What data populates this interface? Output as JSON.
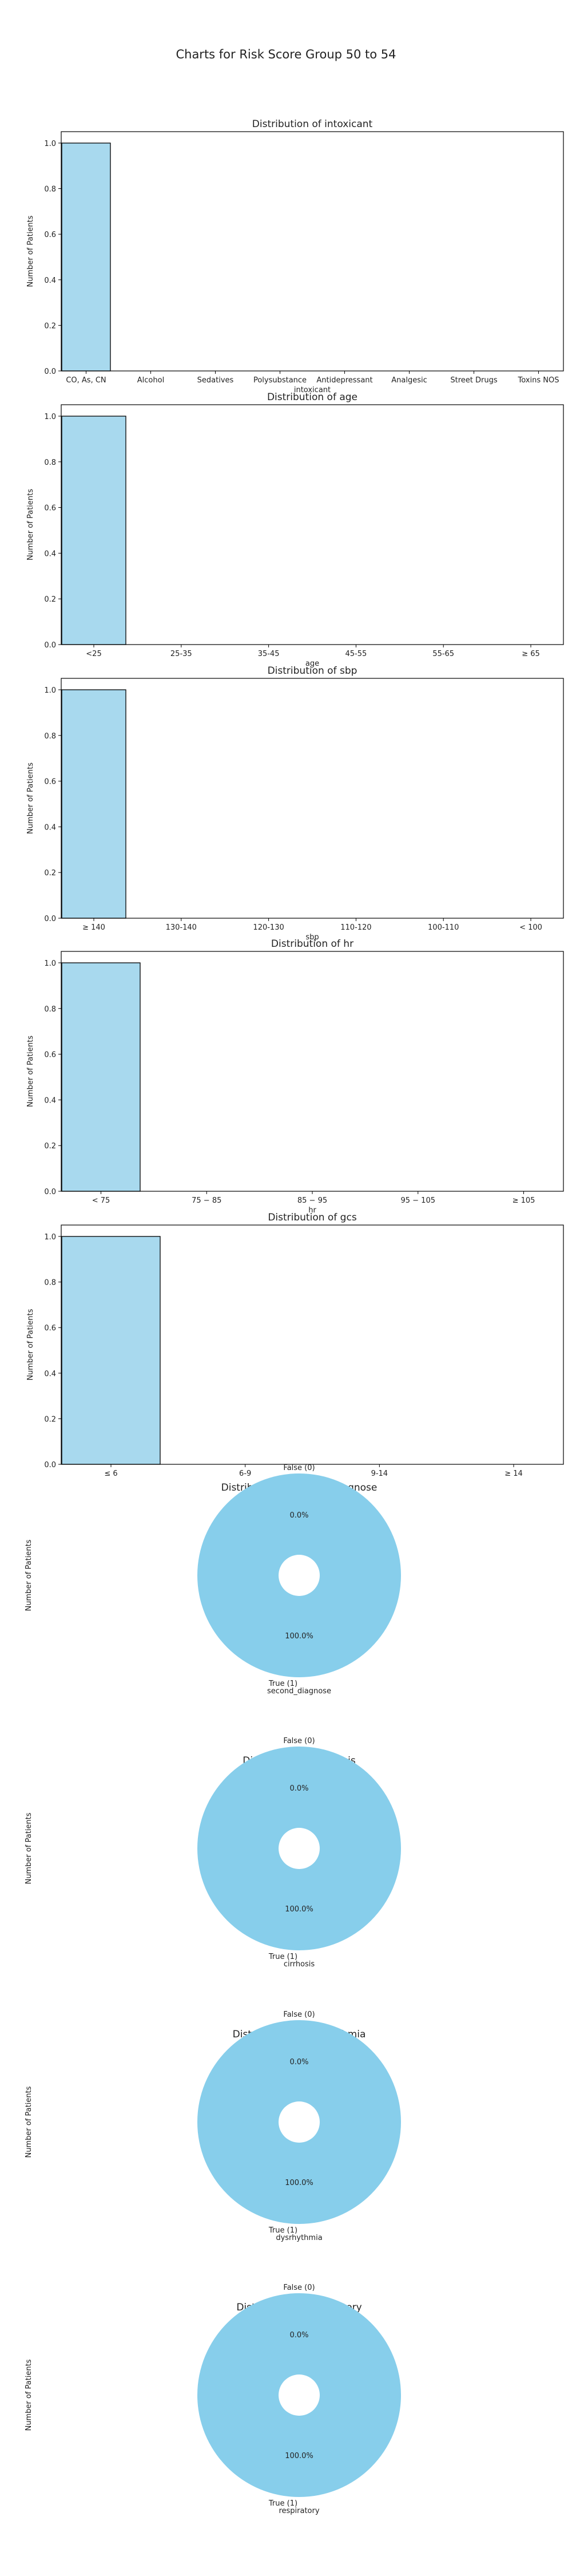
{
  "figure": {
    "title": "Charts for Risk Score Group 50 to 54"
  },
  "colors": {
    "bar_fill": "#a8d9ee",
    "bar_edge": "#000000",
    "pie_fill": "#87ceeb",
    "axis": "#000000"
  },
  "chart_data": [
    {
      "type": "bar",
      "title": "Distribution of intoxicant",
      "xlabel": "intoxicant",
      "ylabel": "Number of Patients",
      "ylim": [
        0,
        1.05
      ],
      "yticks": [
        "0.0",
        "0.2",
        "0.4",
        "0.6",
        "0.8",
        "1.0"
      ],
      "categories": [
        "CO, As, CN",
        "Alcohol",
        "Sedatives",
        "Polysubstance",
        "Antidepressant",
        "Analgesic",
        "Street Drugs",
        "Toxins NOS"
      ],
      "values": [
        1,
        0,
        0,
        0,
        0,
        0,
        0,
        0
      ]
    },
    {
      "type": "bar",
      "title": "Distribution of age",
      "xlabel": "age",
      "ylabel": "Number of Patients",
      "ylim": [
        0,
        1.05
      ],
      "yticks": [
        "0.0",
        "0.2",
        "0.4",
        "0.6",
        "0.8",
        "1.0"
      ],
      "categories": [
        "<25",
        "25-35",
        "35-45",
        "45-55",
        "55-65",
        "≥ 65"
      ],
      "values": [
        1,
        0,
        0,
        0,
        0,
        0
      ]
    },
    {
      "type": "bar",
      "title": "Distribution of sbp",
      "xlabel": "sbp",
      "ylabel": "Number of Patients",
      "ylim": [
        0,
        1.05
      ],
      "yticks": [
        "0.0",
        "0.2",
        "0.4",
        "0.6",
        "0.8",
        "1.0"
      ],
      "categories": [
        "≥ 140",
        "130-140",
        "120-130",
        "110-120",
        "100-110",
        "< 100"
      ],
      "values": [
        1,
        0,
        0,
        0,
        0,
        0
      ]
    },
    {
      "type": "bar",
      "title": "Distribution of hr",
      "xlabel": "hr",
      "ylabel": "Number of Patients",
      "ylim": [
        0,
        1.05
      ],
      "yticks": [
        "0.0",
        "0.2",
        "0.4",
        "0.6",
        "0.8",
        "1.0"
      ],
      "categories": [
        "< 75",
        "75 − 85",
        "85 − 95",
        "95 − 105",
        "≥ 105"
      ],
      "values": [
        1,
        0,
        0,
        0,
        0
      ]
    },
    {
      "type": "bar",
      "title": "Distribution of gcs",
      "xlabel": "gcs",
      "ylabel": "Number of Patients",
      "ylim": [
        0,
        1.05
      ],
      "yticks": [
        "0.0",
        "0.2",
        "0.4",
        "0.6",
        "0.8",
        "1.0"
      ],
      "categories": [
        "≤ 6",
        "6-9",
        "9-14",
        "≥ 14"
      ],
      "values": [
        1,
        0,
        0,
        0
      ]
    },
    {
      "type": "pie",
      "title": "Distribution of second_diagnose",
      "xlabel": "second_diagnose",
      "ylabel": "Number of Patients",
      "labels": [
        "False (0)",
        "True (1)"
      ],
      "values": [
        0,
        1
      ],
      "pct_labels": [
        "0.0%",
        "100.0%"
      ]
    },
    {
      "type": "pie",
      "title": "Distribution of cirrhosis",
      "xlabel": "cirrhosis",
      "ylabel": "Number of Patients",
      "labels": [
        "False (0)",
        "True (1)"
      ],
      "values": [
        0,
        1
      ],
      "pct_labels": [
        "0.0%",
        "100.0%"
      ]
    },
    {
      "type": "pie",
      "title": "Distribution of dysrhythmia",
      "xlabel": "dysrhythmia",
      "ylabel": "Number of Patients",
      "labels": [
        "False (0)",
        "True (1)"
      ],
      "values": [
        0,
        1
      ],
      "pct_labels": [
        "0.0%",
        "100.0%"
      ]
    },
    {
      "type": "pie",
      "title": "Distribution of respiratory",
      "xlabel": "respiratory",
      "ylabel": "Number of Patients",
      "labels": [
        "False (0)",
        "True (1)"
      ],
      "values": [
        0,
        1
      ],
      "pct_labels": [
        "0.0%",
        "100.0%"
      ]
    }
  ]
}
